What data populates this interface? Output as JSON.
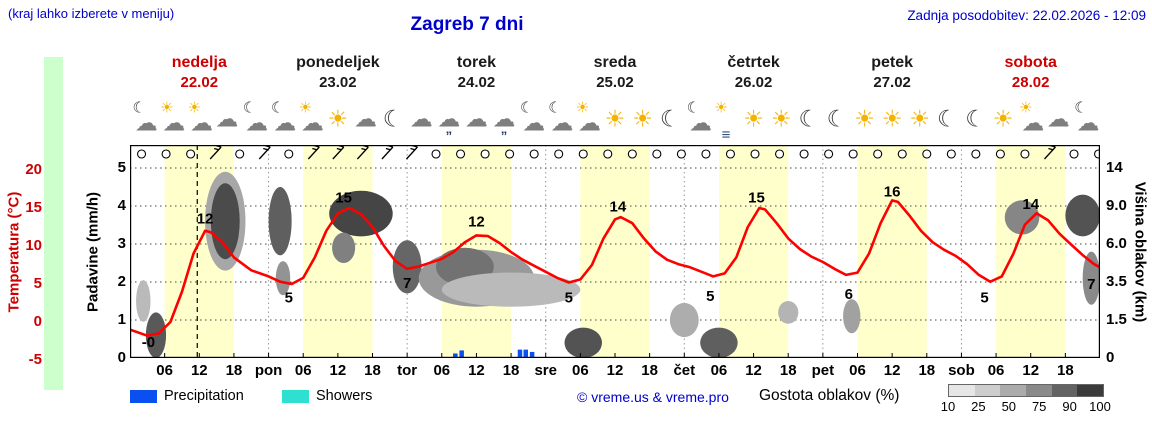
{
  "header": {
    "hint": "(kraj lahko izberete v meniju)",
    "title": "Zagreb 7 dni",
    "updated": "Zadnja posodobitev: 22.02.2026 - 12:09"
  },
  "days": [
    {
      "name": "nedelja",
      "date": "22.02",
      "highlight": true
    },
    {
      "name": "ponedeljek",
      "date": "23.02",
      "highlight": false
    },
    {
      "name": "torek",
      "date": "24.02",
      "highlight": false
    },
    {
      "name": "sreda",
      "date": "25.02",
      "highlight": false
    },
    {
      "name": "četrtek",
      "date": "26.02",
      "highlight": false
    },
    {
      "name": "petek",
      "date": "27.02",
      "highlight": false
    },
    {
      "name": "sobota",
      "date": "28.02",
      "highlight": true
    }
  ],
  "weather_icons": [
    [
      "moon-cloud",
      "sun-cloud",
      "sun-cloud",
      "cloud",
      "moon-cloud"
    ],
    [
      "moon-cloud",
      "sun-cloud",
      "sun",
      "cloud",
      "moon"
    ],
    [
      "cloud",
      "rain-cloud",
      "cloud",
      "rain-cloud",
      "moon-cloud"
    ],
    [
      "moon-cloud",
      "sun-cloud",
      "sun",
      "sun",
      "moon"
    ],
    [
      "moon-cloud",
      "fog",
      "sun",
      "sun",
      "moon"
    ],
    [
      "moon",
      "sun",
      "sun",
      "sun",
      "moon"
    ],
    [
      "moon",
      "sun",
      "sun-cloud",
      "cloud",
      "moon-cloud"
    ]
  ],
  "axes": {
    "temp_label": "Temperatura (°C)",
    "temp_ticks": [
      "20",
      "15",
      "10",
      "5",
      "0",
      "-5"
    ],
    "temp_tick_values": [
      20,
      15,
      10,
      5,
      0,
      -5
    ],
    "precip_label": "Padavine (mm/h)",
    "precip_ticks": [
      "5",
      "4",
      "3",
      "2",
      "1",
      "0"
    ],
    "precip_tick_values": [
      5,
      4,
      3,
      2,
      1,
      0
    ],
    "cloud_label": "Višina oblakov (km)",
    "cloud_ticks": [
      "14",
      "9.0",
      "6.0",
      "3.5",
      "1.5",
      "0"
    ]
  },
  "x_axis": {
    "labels": [
      {
        "h": 6,
        "t": "06"
      },
      {
        "h": 12,
        "t": "12"
      },
      {
        "h": 18,
        "t": "18"
      },
      {
        "h": 24,
        "t": "pon"
      },
      {
        "h": 30,
        "t": "06"
      },
      {
        "h": 36,
        "t": "12"
      },
      {
        "h": 42,
        "t": "18"
      },
      {
        "h": 48,
        "t": "tor"
      },
      {
        "h": 54,
        "t": "06"
      },
      {
        "h": 60,
        "t": "12"
      },
      {
        "h": 66,
        "t": "18"
      },
      {
        "h": 72,
        "t": "sre"
      },
      {
        "h": 78,
        "t": "06"
      },
      {
        "h": 84,
        "t": "12"
      },
      {
        "h": 90,
        "t": "18"
      },
      {
        "h": 96,
        "t": "čet"
      },
      {
        "h": 102,
        "t": "06"
      },
      {
        "h": 108,
        "t": "12"
      },
      {
        "h": 114,
        "t": "18"
      },
      {
        "h": 120,
        "t": "pet"
      },
      {
        "h": 126,
        "t": "06"
      },
      {
        "h": 132,
        "t": "12"
      },
      {
        "h": 138,
        "t": "18"
      },
      {
        "h": 144,
        "t": "sob"
      },
      {
        "h": 150,
        "t": "06"
      },
      {
        "h": 156,
        "t": "12"
      },
      {
        "h": 162,
        "t": "18"
      }
    ]
  },
  "legend": {
    "precipitation": "Precipitation",
    "showers": "Showers",
    "copyright": "© vreme.us & vreme.pro",
    "cloud_density": "Gostota oblakov (%)",
    "density_ticks": [
      "10",
      "25",
      "50",
      "75",
      "90",
      "100"
    ],
    "density_shades": [
      "#e6e6e6",
      "#cdcdcd",
      "#ababab",
      "#8a8a8a",
      "#636363",
      "#3b3b3b"
    ],
    "precip_color": "#0a50f0",
    "showers_color": "#2ee0cf"
  },
  "colors": {
    "accent_blue": "#0000cc",
    "highlight_red": "#cc0000",
    "temp_curve": "#ff0000",
    "day_band": "#ffffcc",
    "left_strip": "#ccffcc"
  },
  "chart_data": {
    "type": "line",
    "title": "Zagreb 7 dni",
    "x_unit": "hour of 7-day period (22.02–28.02)",
    "x_range_hours": [
      0,
      168
    ],
    "temp_axis_range_degC": [
      -5,
      20
    ],
    "precip_axis_range_mm": [
      0,
      5
    ],
    "cloud_height_ticks_km": [
      "0",
      "1.5",
      "3.5",
      "6.0",
      "9.0",
      "14"
    ],
    "temperature_series_h_degC": [
      [
        0,
        -1
      ],
      [
        3,
        -1.8
      ],
      [
        5,
        -1.5
      ],
      [
        7,
        0
      ],
      [
        9,
        4
      ],
      [
        11,
        9
      ],
      [
        13,
        12
      ],
      [
        14,
        11.8
      ],
      [
        16,
        10.5
      ],
      [
        18,
        8.5
      ],
      [
        21,
        6.8
      ],
      [
        24,
        6
      ],
      [
        26,
        5.3
      ],
      [
        28,
        5
      ],
      [
        30,
        5.8
      ],
      [
        32,
        8.5
      ],
      [
        34,
        12
      ],
      [
        36,
        14.3
      ],
      [
        38,
        15
      ],
      [
        40,
        14.2
      ],
      [
        42,
        12.5
      ],
      [
        44,
        10
      ],
      [
        46,
        8
      ],
      [
        48,
        7
      ],
      [
        50,
        7.3
      ],
      [
        52,
        7.8
      ],
      [
        54,
        8.3
      ],
      [
        56,
        9.2
      ],
      [
        58,
        10.5
      ],
      [
        60,
        11.4
      ],
      [
        62,
        11.3
      ],
      [
        64,
        10.4
      ],
      [
        66,
        9.2
      ],
      [
        68,
        8.2
      ],
      [
        70,
        7.4
      ],
      [
        72,
        6.6
      ],
      [
        74,
        5.8
      ],
      [
        76,
        5.2
      ],
      [
        78,
        5.6
      ],
      [
        80,
        7.5
      ],
      [
        82,
        11
      ],
      [
        84,
        13.5
      ],
      [
        85,
        13.8
      ],
      [
        87,
        13
      ],
      [
        89,
        11
      ],
      [
        91,
        9.3
      ],
      [
        93,
        8.2
      ],
      [
        95,
        7.6
      ],
      [
        97,
        7.2
      ],
      [
        99,
        6.6
      ],
      [
        101,
        6
      ],
      [
        103,
        6.4
      ],
      [
        105,
        8.5
      ],
      [
        107,
        12.5
      ],
      [
        109,
        15
      ],
      [
        110,
        14.8
      ],
      [
        112,
        13
      ],
      [
        114,
        11
      ],
      [
        116,
        9.6
      ],
      [
        118,
        8.6
      ],
      [
        120,
        7.9
      ],
      [
        122,
        7
      ],
      [
        124,
        6.2
      ],
      [
        126,
        6.5
      ],
      [
        128,
        9
      ],
      [
        130,
        13
      ],
      [
        132,
        16
      ],
      [
        133,
        15.8
      ],
      [
        135,
        14
      ],
      [
        137,
        12
      ],
      [
        139,
        10.5
      ],
      [
        141,
        9.5
      ],
      [
        143,
        8.7
      ],
      [
        145,
        7.6
      ],
      [
        147,
        6.2
      ],
      [
        149,
        5.3
      ],
      [
        151,
        6
      ],
      [
        153,
        9
      ],
      [
        155,
        12.8
      ],
      [
        157,
        14.3
      ],
      [
        159,
        13.4
      ],
      [
        161,
        11.6
      ],
      [
        163,
        10.2
      ],
      [
        165,
        8.8
      ],
      [
        167,
        7.6
      ],
      [
        168,
        7.2
      ]
    ],
    "temperature_labels": [
      {
        "t": "-0",
        "h": 3.2,
        "T": -2.6
      },
      {
        "t": "12",
        "h": 13,
        "T": 13.6
      },
      {
        "t": "5",
        "h": 27.5,
        "T": 3.2
      },
      {
        "t": "15",
        "h": 37,
        "T": 16.4
      },
      {
        "t": "7",
        "h": 48,
        "T": 5.1
      },
      {
        "t": "12",
        "h": 60,
        "T": 13.2
      },
      {
        "t": "5",
        "h": 76,
        "T": 3.2
      },
      {
        "t": "14",
        "h": 84.5,
        "T": 15.2
      },
      {
        "t": "5",
        "h": 100.5,
        "T": 3.4
      },
      {
        "t": "15",
        "h": 108.5,
        "T": 16.4
      },
      {
        "t": "6",
        "h": 124.5,
        "T": 3.7
      },
      {
        "t": "16",
        "h": 132,
        "T": 17.2
      },
      {
        "t": "5",
        "h": 148,
        "T": 3.2
      },
      {
        "t": "14",
        "h": 156,
        "T": 15.5
      },
      {
        "t": "7",
        "h": 166.5,
        "T": 5
      }
    ],
    "daily_max_degC": [
      12,
      15,
      12,
      14,
      15,
      16,
      14
    ],
    "daily_min_degC": [
      0,
      5,
      7,
      5,
      5,
      6,
      5
    ],
    "precip_bars_h_mm": [
      [
        56.3,
        0.12
      ],
      [
        57.4,
        0.2
      ],
      [
        67.5,
        0.22
      ],
      [
        68.5,
        0.22
      ],
      [
        69.6,
        0.16
      ]
    ],
    "clouds_h_u_w_h_shade": [
      [
        2.3,
        1.5,
        2.5,
        1.1,
        25
      ],
      [
        4.5,
        0.6,
        3.5,
        1.2,
        75
      ],
      [
        16.5,
        3.6,
        7,
        2.6,
        35
      ],
      [
        16.5,
        3.6,
        5,
        2.0,
        82
      ],
      [
        26,
        3.6,
        4,
        1.8,
        72
      ],
      [
        26.5,
        2.1,
        2.5,
        0.9,
        45
      ],
      [
        40,
        3.8,
        11,
        1.2,
        85
      ],
      [
        37,
        2.9,
        4,
        0.8,
        55
      ],
      [
        48,
        2.4,
        5,
        1.4,
        68
      ],
      [
        60,
        2.1,
        20,
        1.5,
        42
      ],
      [
        58,
        2.4,
        10,
        1.0,
        62
      ],
      [
        66,
        1.8,
        24,
        0.9,
        25
      ],
      [
        78.5,
        0.4,
        6.5,
        0.8,
        78
      ],
      [
        96,
        1.0,
        5,
        0.9,
        32
      ],
      [
        102,
        0.4,
        6.5,
        0.8,
        72
      ],
      [
        114,
        1.2,
        3.5,
        0.6,
        28
      ],
      [
        125,
        1.1,
        3,
        0.9,
        38
      ],
      [
        154.5,
        3.7,
        6,
        0.9,
        52
      ],
      [
        165,
        3.75,
        6,
        1.1,
        78
      ],
      [
        166.5,
        2.1,
        3,
        1.4,
        50
      ]
    ],
    "now_line_h": 11.65,
    "wind": {
      "hours": [
        2,
        6.25,
        10.5,
        14.75,
        19,
        23.25,
        27.5,
        31.75,
        36,
        40.25,
        44.5,
        48.75,
        53,
        57.25,
        61.5,
        65.75,
        70,
        74.25,
        78.5,
        82.75,
        87,
        91.25,
        95.5,
        99.75,
        104,
        108.25,
        112.5,
        116.75,
        121,
        125.25,
        129.5,
        133.75,
        138,
        142.25,
        146.5,
        150.75,
        155,
        159.25,
        163.5,
        167.75
      ],
      "barb_indexes": [
        3,
        5,
        7,
        8,
        9,
        10,
        11,
        37
      ]
    }
  }
}
